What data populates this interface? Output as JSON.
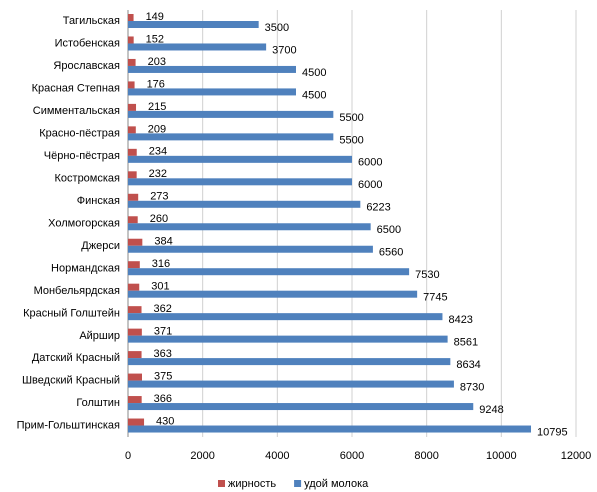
{
  "chart_data": {
    "type": "bar",
    "orientation": "horizontal",
    "categories": [
      "Тагильская",
      "Истобенская",
      "Ярославская",
      "Красная Степная",
      "Симментальская",
      "Красно-пёстрая",
      "Чёрно-пёстрая",
      "Костромская",
      "Финская",
      "Холмогорская",
      "Джерси",
      "Нормандская",
      "Монбельярдская",
      "Красный Голштейн",
      "Айршир",
      "Датский Красный",
      "Шведский Красный",
      "Голштин",
      "Прим-Гольштинская"
    ],
    "series": [
      {
        "name": "жирность",
        "color": "#c0504d",
        "values": [
          149,
          152,
          203,
          176,
          215,
          209,
          234,
          232,
          273,
          260,
          384,
          316,
          301,
          362,
          371,
          363,
          375,
          366,
          430
        ]
      },
      {
        "name": "удой молока",
        "color": "#4f81bd",
        "values": [
          3500,
          3700,
          4500,
          4500,
          5500,
          5500,
          6000,
          6000,
          6223,
          6500,
          6560,
          7530,
          7745,
          8423,
          8561,
          8634,
          8730,
          9248,
          10795
        ]
      }
    ],
    "xlim": [
      0,
      12000
    ],
    "xticks": [
      0,
      2000,
      4000,
      6000,
      8000,
      10000,
      12000
    ],
    "grid": true,
    "legend": "bottom"
  }
}
